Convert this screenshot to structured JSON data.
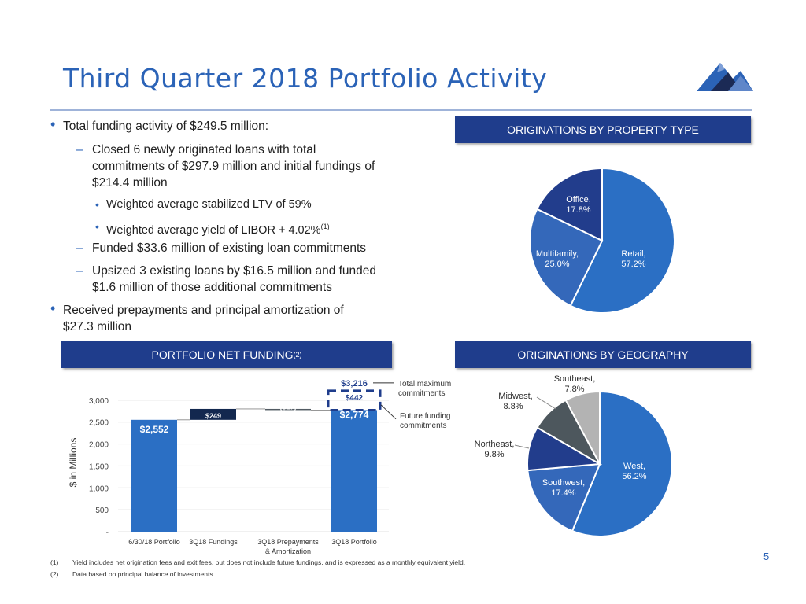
{
  "title": "Third Quarter 2018 Portfolio Activity",
  "page_number": "5",
  "bullets": [
    {
      "level": 1,
      "text": "Total funding activity of $249.5 million:"
    },
    {
      "level": 2,
      "text": "Closed 6 newly originated loans with total"
    },
    {
      "level": 2,
      "cont": true,
      "text": "commitments of $297.9 million and initial fundings of"
    },
    {
      "level": 2,
      "cont": true,
      "text": "$214.4 million"
    },
    {
      "level": 3,
      "text": "Weighted average stabilized LTV of 59%"
    },
    {
      "level": 3,
      "text": "Weighted average yield of LIBOR + 4.02%",
      "sup": "(1)"
    },
    {
      "level": 2,
      "text": "Funded $33.6 million of existing loan commitments"
    },
    {
      "level": 2,
      "text": "Upsized 3 existing loans by $16.5 million and funded"
    },
    {
      "level": 2,
      "cont": true,
      "text": "$1.6 million of those additional commitments"
    },
    {
      "level": 1,
      "text": "Received prepayments and principal amortization of"
    },
    {
      "level": 1,
      "cont": true,
      "text": "$27.3 million"
    }
  ],
  "banners": {
    "property_type": "ORIGINATIONS BY PROPERTY TYPE",
    "net_funding": "PORTFOLIO NET FUNDING",
    "net_funding_sup": "(2)",
    "geography": "ORIGINATIONS BY GEOGRAPHY"
  },
  "footnotes": [
    {
      "num": "(1)",
      "text": "Yield includes net origination fees and exit fees, but does not include future fundings, and is expressed as a monthly equivalent yield."
    },
    {
      "num": "(2)",
      "text": "Data based on principal balance of investments."
    }
  ],
  "colors": {
    "title_blue": "#2b63b7",
    "navy": "#1f3d8c",
    "bar_blue": "#2b6fc4",
    "bar_dark": "#13284f",
    "bar_gray": "#525b63",
    "pie_blue": "#2b6fc4",
    "pie_mid": "#3468ba",
    "pie_navy": "#223d8c",
    "pie_darkgray": "#4d575d",
    "pie_lightgray": "#b3b3b3"
  },
  "chart_data": [
    {
      "type": "pie",
      "title": "ORIGINATIONS BY PROPERTY TYPE",
      "slices": [
        {
          "label": "Retail,",
          "value": 57.2,
          "value_label": "57.2%",
          "color": "#2b6fc4"
        },
        {
          "label": "Multifamily,",
          "value": 25.0,
          "value_label": "25.0%",
          "color": "#3468ba"
        },
        {
          "label": "Office,",
          "value": 17.8,
          "value_label": "17.8%",
          "color": "#223d8c"
        }
      ]
    },
    {
      "type": "bar",
      "subtype": "waterfall",
      "title": "PORTFOLIO NET FUNDING",
      "ylabel": "$ in Millions",
      "ylim": [
        0,
        3500
      ],
      "yticks": [
        0,
        500,
        1000,
        1500,
        2000,
        2500,
        3000
      ],
      "ytick_labels": [
        "-",
        "500",
        "1,000",
        "1,500",
        "2,000",
        "2,500",
        "3,000"
      ],
      "categories": [
        "6/30/18 Portfolio",
        "3Q18 Fundings",
        "3Q18 Prepayments & Amortization",
        "3Q18 Portfolio"
      ],
      "bars": [
        {
          "category": "6/30/18 Portfolio",
          "base": 0,
          "value": 2552,
          "label": "$2,552",
          "color": "#2b6fc4"
        },
        {
          "category": "3Q18 Fundings",
          "base": 2552,
          "value": 249,
          "label": "$249",
          "color": "#13284f"
        },
        {
          "category": "3Q18 Prepayments & Amortization",
          "base": 2801,
          "value": -27,
          "label": "($27)",
          "color": "#525b63"
        },
        {
          "category": "3Q18 Portfolio",
          "base": 0,
          "value": 2774,
          "label": "$2,774",
          "color": "#2b6fc4"
        }
      ],
      "future_funding": {
        "value": 442,
        "label": "$442",
        "total": 3216,
        "total_label": "$3,216"
      },
      "annotations": {
        "total_commitments": "Total maximum commitments",
        "future_funding": "Future funding commitments"
      }
    },
    {
      "type": "pie",
      "title": "ORIGINATIONS BY GEOGRAPHY",
      "slices": [
        {
          "label": "West,",
          "value": 56.2,
          "value_label": "56.2%",
          "color": "#2b6fc4"
        },
        {
          "label": "Southwest,",
          "value": 17.4,
          "value_label": "17.4%",
          "color": "#3468ba"
        },
        {
          "label": "Northeast,",
          "value": 9.8,
          "value_label": "9.8%",
          "color": "#223d8c"
        },
        {
          "label": "Midwest,",
          "value": 8.8,
          "value_label": "8.8%",
          "color": "#4d575d"
        },
        {
          "label": "Southeast,",
          "value": 7.8,
          "value_label": "7.8%",
          "color": "#b3b3b3"
        }
      ]
    }
  ]
}
